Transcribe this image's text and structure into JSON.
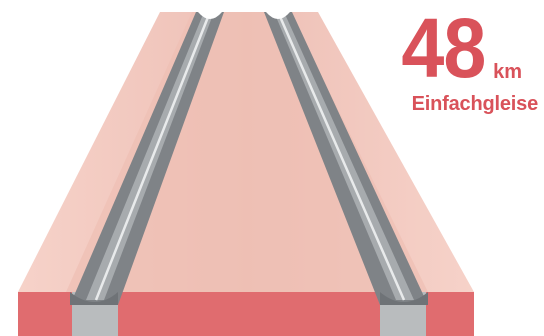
{
  "stat": {
    "value": "48",
    "unit": "km",
    "label": "Einfachgleise"
  },
  "colors": {
    "accent": "#d9525a",
    "trackbed_light": "#f4cfc6",
    "trackbed_mid": "#efc2b8",
    "ground_band": "#e06c6f",
    "rail_gray": "#8c9094",
    "rail_light": "#c9ccce"
  },
  "illustration": {
    "subject": "single-track railway rails converging in perspective",
    "icon": "railway-track-icon"
  }
}
